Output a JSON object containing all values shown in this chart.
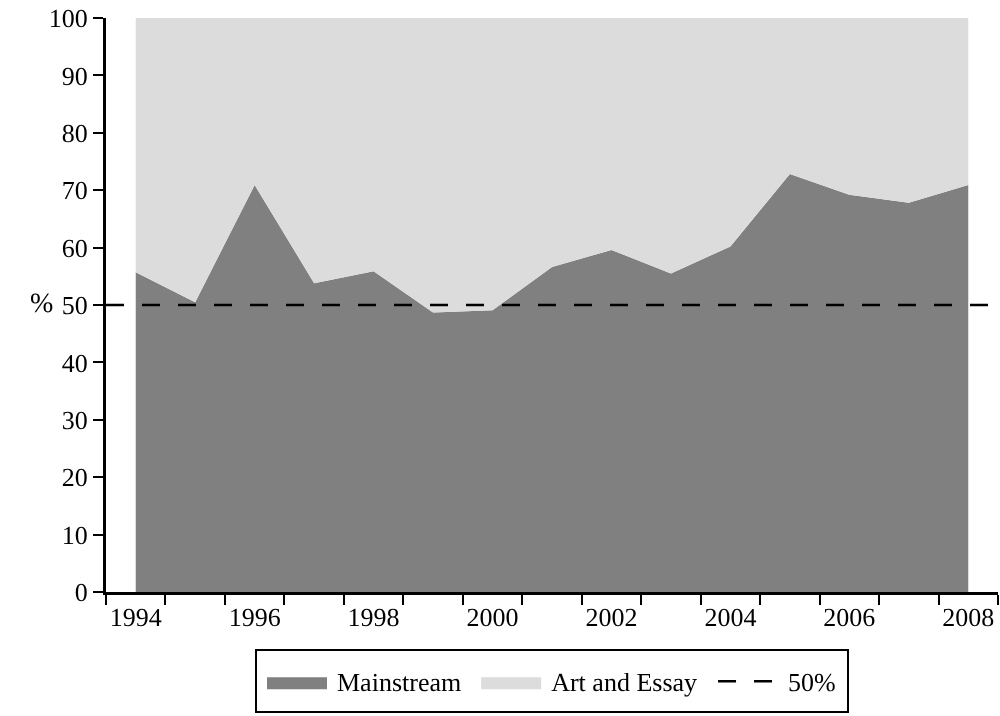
{
  "chart_data": {
    "type": "area",
    "stacked": true,
    "ylabel": "%",
    "categories": [
      "1994",
      null,
      "1996",
      null,
      "1998",
      null,
      "2000",
      null,
      "2002",
      null,
      "2004",
      null,
      "2006",
      null,
      "2008"
    ],
    "series": [
      {
        "name": "Mainstream",
        "color": "#808080",
        "values": [
          55.7,
          50.5,
          70.9,
          53.8,
          55.9,
          48.7,
          49.1,
          56.6,
          59.6,
          55.5,
          60.2,
          72.8,
          69.2,
          67.8,
          70.9
        ]
      },
      {
        "name": "Art and Essay",
        "color": "#dcdcdc",
        "values": [
          44.3,
          49.5,
          29.1,
          46.2,
          44.1,
          51.3,
          50.9,
          43.4,
          40.4,
          44.5,
          39.8,
          27.2,
          30.8,
          32.2,
          29.1
        ]
      }
    ],
    "ylim": [
      0,
      100
    ],
    "yticks": [
      0,
      10,
      20,
      30,
      40,
      50,
      60,
      70,
      80,
      90,
      100
    ],
    "ref_lines": [
      {
        "axis": "y",
        "value": 50,
        "label": "50%",
        "color": "#000000",
        "line_style": "dashed"
      }
    ],
    "grid": false,
    "legend": "bottom"
  }
}
